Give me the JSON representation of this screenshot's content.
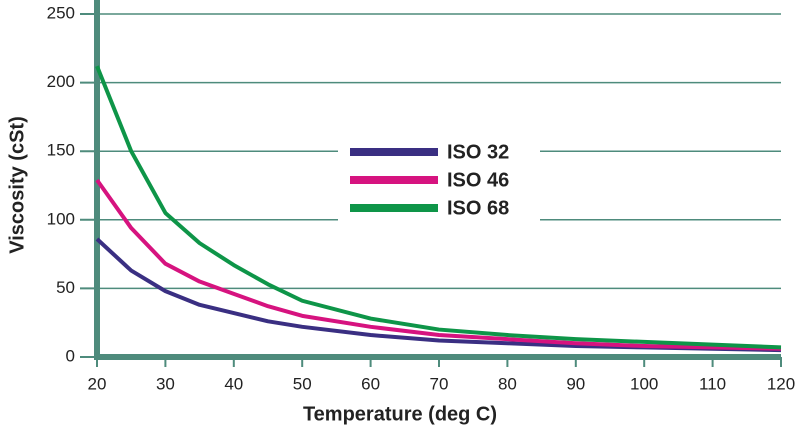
{
  "chart_data": {
    "type": "line",
    "x_label": "Temperature (deg C)",
    "y_label": "Viscosity (cSt)",
    "x": [
      20,
      25,
      30,
      35,
      40,
      45,
      50,
      60,
      70,
      80,
      90,
      100,
      110,
      120
    ],
    "series": [
      {
        "name": "ISO 32",
        "color": "#3a2f82",
        "values": [
          86,
          63,
          48,
          38,
          32,
          26,
          22,
          16,
          12,
          10,
          8,
          7,
          6,
          5
        ]
      },
      {
        "name": "ISO 46",
        "color": "#d6137f",
        "values": [
          129,
          94,
          68,
          55,
          46,
          37,
          30,
          22,
          16,
          13,
          10,
          8,
          7,
          6
        ]
      },
      {
        "name": "ISO 68",
        "color": "#0e9548",
        "values": [
          212,
          150,
          105,
          83,
          67,
          53,
          41,
          28,
          20,
          16,
          13,
          11,
          9,
          7
        ]
      }
    ],
    "xlim": [
      20,
      120
    ],
    "xticks": [
      20,
      30,
      40,
      50,
      60,
      70,
      80,
      90,
      100,
      110,
      120
    ],
    "ylim": [
      0,
      250
    ],
    "yticks": [
      0,
      50,
      100,
      150,
      200,
      250
    ],
    "grid": true
  }
}
